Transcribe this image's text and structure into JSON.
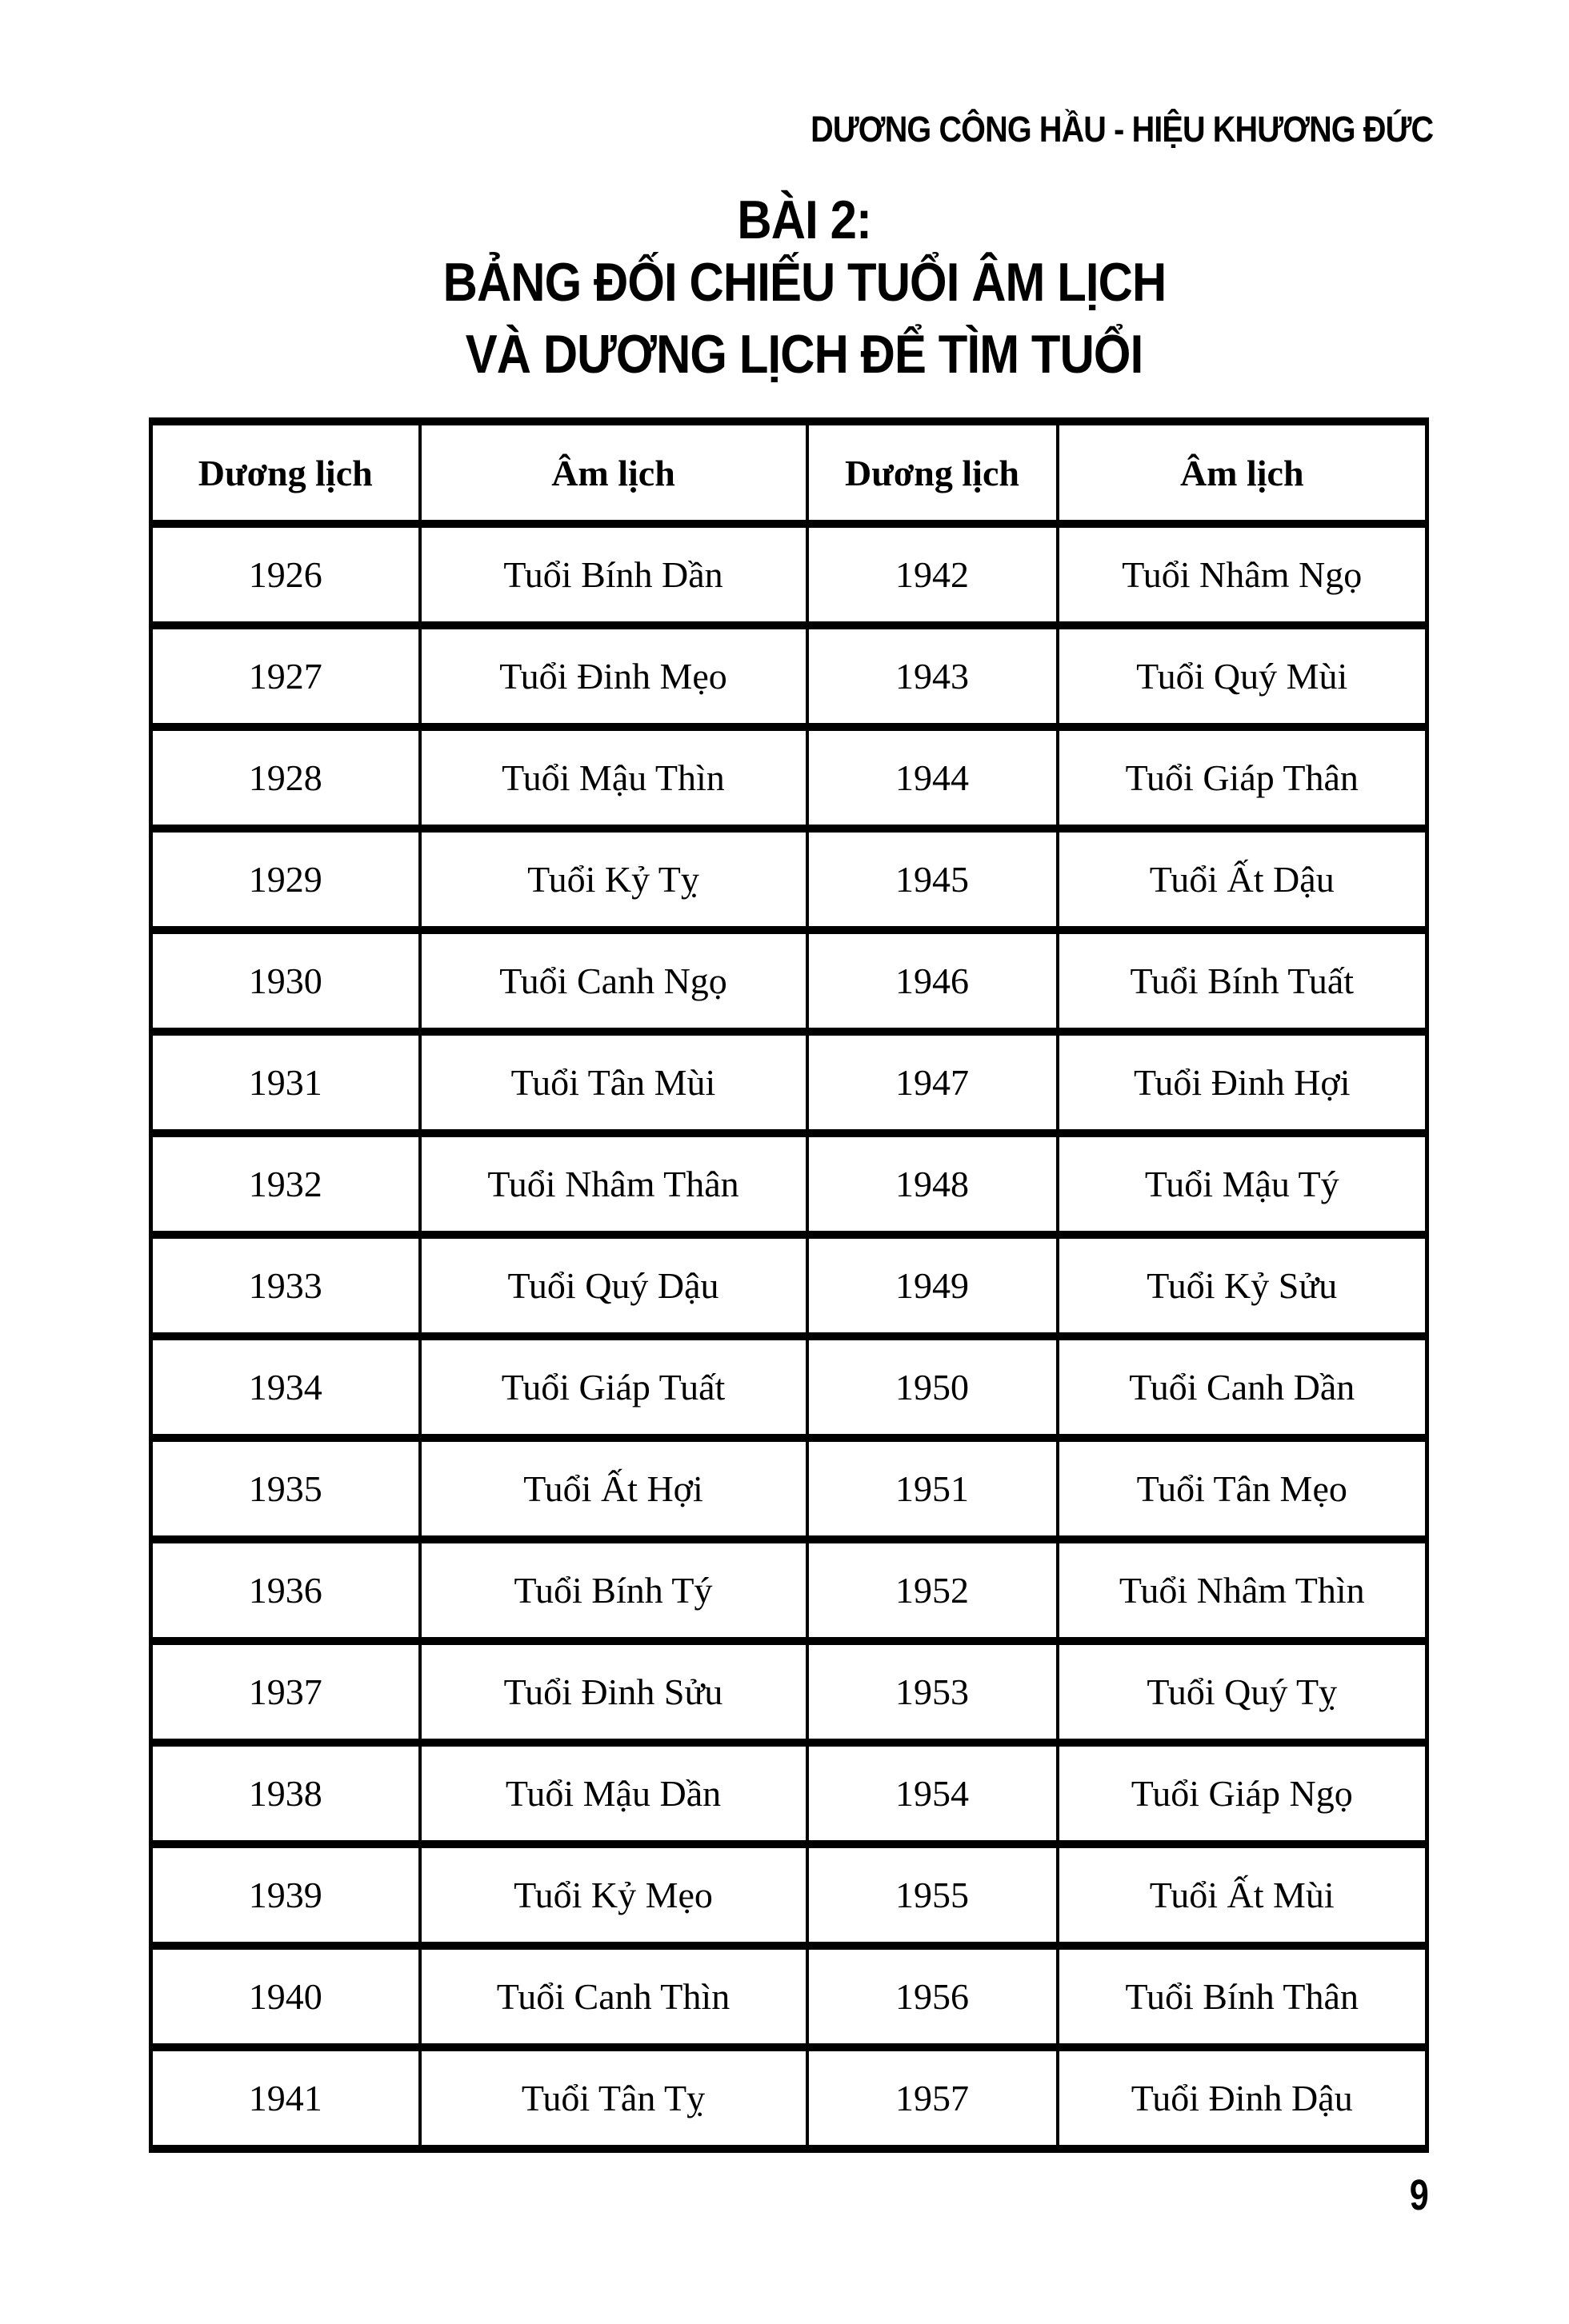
{
  "page": {
    "running_header": "DƯƠNG CÔNG HẦU - HIỆU KHƯƠNG ĐỨC",
    "title_lines": [
      "BÀI 2:",
      "BẢNG ĐỐI CHIẾU TUỔI ÂM LỊCH",
      "VÀ DƯƠNG LỊCH ĐỂ TÌM TUỔI"
    ],
    "page_number": "9"
  },
  "table": {
    "headers": [
      "Dương lịch",
      "Âm lịch",
      "Dương lịch",
      "Âm lịch"
    ],
    "rows": [
      [
        "1926",
        "Tuổi Bính Dần",
        "1942",
        "Tuổi Nhâm Ngọ"
      ],
      [
        "1927",
        "Tuổi Đinh Mẹo",
        "1943",
        "Tuổi Quý Mùi"
      ],
      [
        "1928",
        "Tuổi Mậu Thìn",
        "1944",
        "Tuổi Giáp Thân"
      ],
      [
        "1929",
        "Tuổi Kỷ Tỵ",
        "1945",
        "Tuổi Ất Dậu"
      ],
      [
        "1930",
        "Tuổi Canh Ngọ",
        "1946",
        "Tuổi Bính Tuất"
      ],
      [
        "1931",
        "Tuổi Tân Mùi",
        "1947",
        "Tuổi Đinh Hợi"
      ],
      [
        "1932",
        "Tuổi Nhâm Thân",
        "1948",
        "Tuổi Mậu Tý"
      ],
      [
        "1933",
        "Tuổi Quý Dậu",
        "1949",
        "Tuổi Kỷ Sửu"
      ],
      [
        "1934",
        "Tuổi Giáp Tuất",
        "1950",
        "Tuổi Canh Dần"
      ],
      [
        "1935",
        "Tuổi Ất Hợi",
        "1951",
        "Tuổi Tân Mẹo"
      ],
      [
        "1936",
        "Tuổi Bính Tý",
        "1952",
        "Tuổi Nhâm Thìn"
      ],
      [
        "1937",
        "Tuổi Đinh Sửu",
        "1953",
        "Tuổi Quý Tỵ"
      ],
      [
        "1938",
        "Tuổi Mậu Dần",
        "1954",
        "Tuổi Giáp Ngọ"
      ],
      [
        "1939",
        "Tuổi Kỷ Mẹo",
        "1955",
        "Tuổi Ất Mùi"
      ],
      [
        "1940",
        "Tuổi Canh Thìn",
        "1956",
        "Tuổi Bính Thân"
      ],
      [
        "1941",
        "Tuổi Tân Tỵ",
        "1957",
        "Tuổi Đinh Dậu"
      ]
    ]
  },
  "colors": {
    "text": "#000000",
    "page_background": "#ffffff",
    "table_border": "#000000"
  }
}
